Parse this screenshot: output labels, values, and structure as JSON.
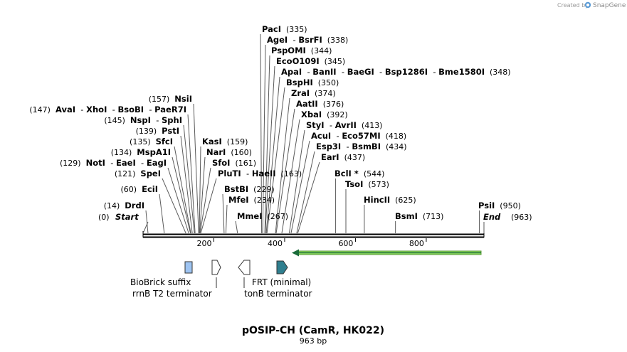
{
  "credit": {
    "text": "Created by",
    "brand": "SnapGene",
    "icon": "snapgene-logo-icon"
  },
  "title": "pOSIP-CH (CamR, HK022)",
  "length_label": "963 bp",
  "axis": {
    "ticks": [
      "200",
      "400",
      "600",
      "800"
    ]
  },
  "ends": {
    "start_label": "Start",
    "start_pos": "(0)",
    "end_label": "End",
    "end_pos": "(963)"
  },
  "sites_left": [
    {
      "pos": "(157)",
      "names": [
        "NsiI"
      ]
    },
    {
      "pos": "(147)",
      "names": [
        "AvaI",
        "XhoI",
        "BsoBI",
        "PaeR7I"
      ]
    },
    {
      "pos": "(145)",
      "names": [
        "NspI",
        "SphI"
      ]
    },
    {
      "pos": "(139)",
      "names": [
        "PstI"
      ]
    },
    {
      "pos": "(135)",
      "names": [
        "SfcI"
      ]
    },
    {
      "pos": "(134)",
      "names": [
        "MspA1I"
      ]
    },
    {
      "pos": "(129)",
      "names": [
        "NotI",
        "EaeI",
        "EagI"
      ]
    },
    {
      "pos": "(121)",
      "names": [
        "SpeI"
      ]
    },
    {
      "pos": "(60)",
      "names": [
        "EciI"
      ]
    },
    {
      "pos": "(14)",
      "names": [
        "DrdI"
      ]
    }
  ],
  "sites_mid": [
    {
      "pos": "(159)",
      "names": [
        "KasI"
      ]
    },
    {
      "pos": "(160)",
      "names": [
        "NarI"
      ]
    },
    {
      "pos": "(161)",
      "names": [
        "SfoI"
      ]
    },
    {
      "pos": "(163)",
      "names": [
        "PluTI",
        "HaeII"
      ]
    },
    {
      "pos": "(229)",
      "names": [
        "BstBI"
      ]
    },
    {
      "pos": "(234)",
      "names": [
        "MfeI"
      ]
    },
    {
      "pos": "(267)",
      "names": [
        "MmeI"
      ]
    }
  ],
  "sites_top": [
    {
      "pos": "(335)",
      "names": [
        "PacI"
      ]
    },
    {
      "pos": "(338)",
      "names": [
        "AgeI",
        "BsrFI"
      ]
    },
    {
      "pos": "(344)",
      "names": [
        "PspOMI"
      ]
    },
    {
      "pos": "(345)",
      "names": [
        "EcoO109I"
      ]
    },
    {
      "pos": "(348)",
      "names": [
        "ApaI",
        "BanII",
        "BaeGI",
        "Bsp1286I",
        "Bme1580I"
      ]
    },
    {
      "pos": "(350)",
      "names": [
        "BspHI"
      ]
    },
    {
      "pos": "(374)",
      "names": [
        "ZraI"
      ]
    },
    {
      "pos": "(376)",
      "names": [
        "AatII"
      ]
    },
    {
      "pos": "(392)",
      "names": [
        "XbaI"
      ]
    },
    {
      "pos": "(413)",
      "names": [
        "StyI",
        "AvrII"
      ]
    },
    {
      "pos": "(418)",
      "names": [
        "AcuI",
        "Eco57MI"
      ]
    },
    {
      "pos": "(434)",
      "names": [
        "Esp3I",
        "BsmBI"
      ]
    },
    {
      "pos": "(437)",
      "names": [
        "EarI"
      ]
    }
  ],
  "sites_right": [
    {
      "pos": "(544)",
      "names": [
        "BclI *"
      ]
    },
    {
      "pos": "(573)",
      "names": [
        "TsoI"
      ]
    },
    {
      "pos": "(625)",
      "names": [
        "HincII"
      ]
    },
    {
      "pos": "(713)",
      "names": [
        "BsmI"
      ]
    },
    {
      "pos": "(950)",
      "names": [
        "PsiI"
      ]
    }
  ],
  "features": [
    {
      "label": "BioBrick suffix",
      "color": "#9ec4f2"
    },
    {
      "label": "rrnB T2 terminator",
      "color": "#ffffff"
    },
    {
      "label": "tonB terminator",
      "color": "#ffffff"
    },
    {
      "label": "FRT (minimal)",
      "color": "#2f7f8f"
    },
    {
      "label": "",
      "color": "#8ad85a"
    }
  ]
}
